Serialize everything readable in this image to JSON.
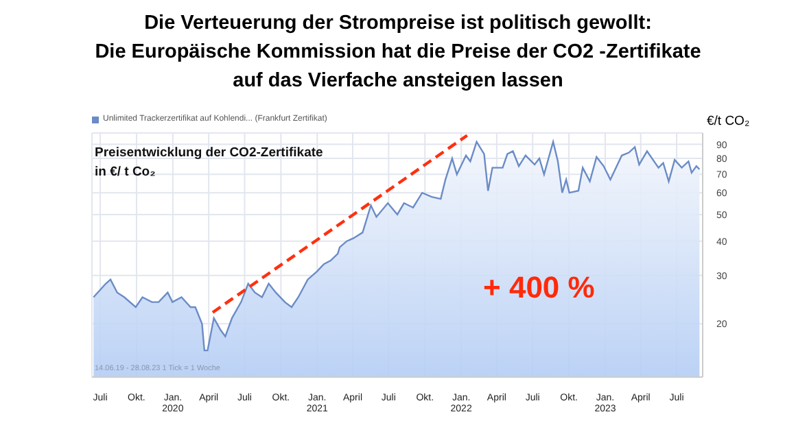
{
  "chart_data": {
    "type": "area",
    "title": "Die Verteuerung der Strompreise ist politisch gewollt:\nDie Europäische Kommission hat die Preise der CO2 -Zertifikate\nauf das Vierfache ansteigen lassen",
    "subtitle": "Preisentwicklung der CO2-Zertifikate\nin €/ t Co₂",
    "ylabel": "€/t CO₂",
    "annotations": [
      "+ 400 %",
      "14.06.19 - 28.08.23  1 Tick = 1 Woche"
    ],
    "log": "y",
    "grid": true,
    "legend": "top left",
    "marker": "none",
    "xlim": [
      "2019-06-10",
      "2023-09-05"
    ],
    "xticks": [
      {
        "value": "2019-07-01",
        "label": "Juli"
      },
      {
        "value": "2019-10-01",
        "label": "Okt."
      },
      {
        "value": "2020-01-01",
        "label": "Jan.\n2020"
      },
      {
        "value": "2020-04-01",
        "label": "April"
      },
      {
        "value": "2020-07-01",
        "label": "Juli"
      },
      {
        "value": "2020-10-01",
        "label": "Okt."
      },
      {
        "value": "2021-01-01",
        "label": "Jan.\n2021"
      },
      {
        "value": "2021-04-01",
        "label": "April"
      },
      {
        "value": "2021-07-01",
        "label": "Juli"
      },
      {
        "value": "2021-10-01",
        "label": "Okt."
      },
      {
        "value": "2022-01-01",
        "label": "Jan.\n2022"
      },
      {
        "value": "2022-04-01",
        "label": "April"
      },
      {
        "value": "2022-07-01",
        "label": "Juli"
      },
      {
        "value": "2022-10-01",
        "label": "Okt."
      },
      {
        "value": "2023-01-01",
        "label": "Jan.\n2023"
      },
      {
        "value": "2023-04-01",
        "label": "April"
      },
      {
        "value": "2023-07-01",
        "label": "Juli"
      }
    ],
    "ylim": [
      12.8,
      99
    ],
    "yticks": [
      20,
      30,
      40,
      50,
      60,
      70,
      80,
      90
    ],
    "series": [
      {
        "name": "Unlimited Trackerzertifikat auf Kohlendi... (Frankfurt Zertifikat)",
        "color": "#6a8cc6",
        "x": [
          "2019-06-14",
          "2019-07-15",
          "2019-07-27",
          "2019-08-13",
          "2019-08-31",
          "2019-09-29",
          "2019-10-16",
          "2019-11-09",
          "2019-11-26",
          "2019-12-19",
          "2019-12-31",
          "2020-01-23",
          "2020-02-15",
          "2020-02-27",
          "2020-03-15",
          "2020-03-21",
          "2020-03-29",
          "2020-04-14",
          "2020-05-01",
          "2020-05-13",
          "2020-05-30",
          "2020-06-22",
          "2020-07-10",
          "2020-07-27",
          "2020-08-14",
          "2020-08-31",
          "2020-09-18",
          "2020-10-11",
          "2020-10-28",
          "2020-11-14",
          "2020-12-08",
          "2020-12-31",
          "2021-01-18",
          "2021-02-04",
          "2021-02-22",
          "2021-02-27",
          "2021-03-17",
          "2021-04-03",
          "2021-04-26",
          "2021-05-17",
          "2021-05-31",
          "2021-06-29",
          "2021-07-23",
          "2021-08-09",
          "2021-09-01",
          "2021-09-24",
          "2021-10-18",
          "2021-11-10",
          "2021-11-22",
          "2021-12-09",
          "2021-12-21",
          "2022-01-13",
          "2022-01-24",
          "2022-02-09",
          "2022-02-28",
          "2022-03-10",
          "2022-03-21",
          "2022-04-16",
          "2022-04-28",
          "2022-05-12",
          "2022-05-27",
          "2022-06-13",
          "2022-07-06",
          "2022-07-18",
          "2022-07-30",
          "2022-08-22",
          "2022-09-03",
          "2022-09-14",
          "2022-09-24",
          "2022-10-02",
          "2022-10-25",
          "2022-11-05",
          "2022-11-23",
          "2022-12-10",
          "2022-12-28",
          "2023-01-14",
          "2023-02-12",
          "2023-03-02",
          "2023-03-17",
          "2023-03-28",
          "2023-04-17",
          "2023-05-16",
          "2023-05-28",
          "2023-06-11",
          "2023-06-26",
          "2023-07-14",
          "2023-07-31",
          "2023-08-08",
          "2023-08-20",
          "2023-08-28"
        ],
        "values": [
          25,
          28,
          29,
          26,
          25,
          23,
          25,
          24,
          24,
          26,
          24,
          25,
          23,
          23,
          20,
          16,
          16,
          21,
          19,
          18,
          21,
          24,
          28,
          26,
          25,
          28,
          26,
          24,
          23,
          25,
          29,
          31,
          33,
          34,
          36,
          38,
          40,
          41,
          43,
          54,
          49,
          55,
          50,
          55,
          53,
          60,
          58,
          57,
          67,
          80,
          70,
          82,
          78,
          92,
          83,
          61,
          74,
          74,
          83,
          85,
          75,
          82,
          76,
          80,
          70,
          92,
          78,
          60,
          67,
          60,
          61,
          74,
          66,
          81,
          75,
          67,
          82,
          84,
          88,
          76,
          85,
          74,
          77,
          66,
          79,
          74,
          78,
          71,
          75,
          73
        ]
      },
      {
        "type": "line",
        "color": "#ff3010",
        "line_style": "dashed",
        "x": [
          "2020-04-11",
          "2022-01-16"
        ],
        "values": [
          22,
          97
        ]
      }
    ]
  }
}
